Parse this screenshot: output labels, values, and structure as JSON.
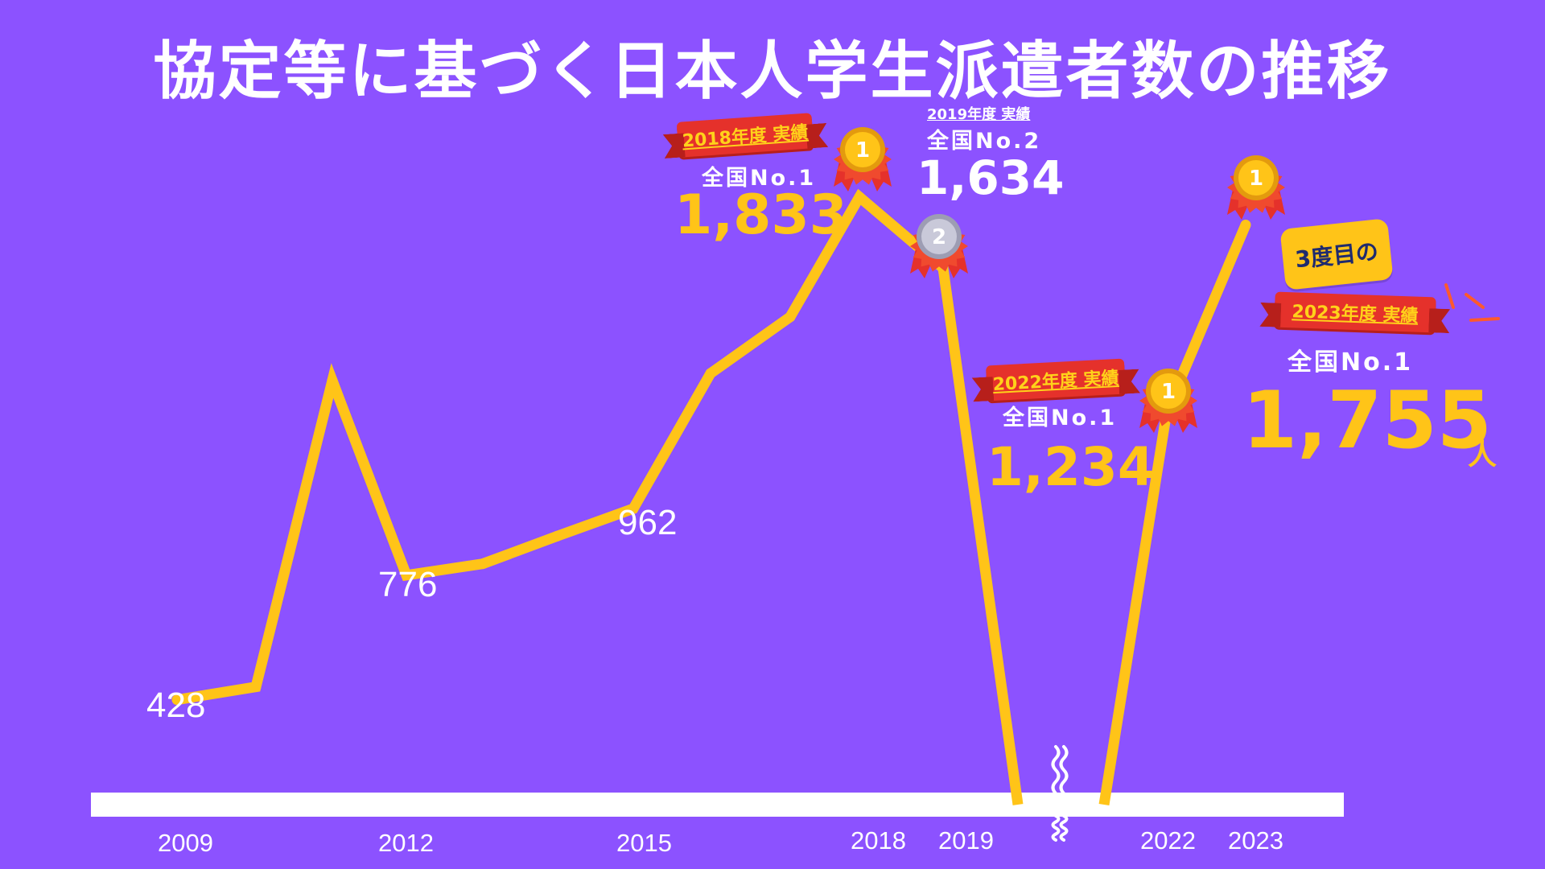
{
  "title": "協定等に基づく日本人学生派遣者数の推移",
  "chart_data": {
    "type": "line",
    "title": "協定等に基づく日本人学生派遣者数の推移",
    "x": [
      "2009",
      "2010",
      "2011",
      "2012",
      "2013",
      "2014",
      "2015",
      "2016",
      "2017",
      "2018",
      "2019",
      "2020",
      "2021",
      "2022",
      "2023"
    ],
    "x_tick_labels": [
      "2009",
      "2012",
      "2015",
      "2018",
      "2019",
      "2022",
      "2023"
    ],
    "series": [
      {
        "values": [
          428,
          464,
          1320,
          776,
          808,
          885,
          962,
          1340,
          1498,
          1833,
          1634,
          null,
          null,
          1234,
          1755
        ]
      }
    ],
    "value_labels": {
      "2009": "428",
      "2012": "776",
      "2015": "962"
    },
    "axis_break": "2020–2021",
    "line_color": "#ffc418",
    "background_color": "#8c52ff"
  },
  "annotations": [
    {
      "year": "2018",
      "ribbon": "2018年度 実績",
      "rank": "全国No.1",
      "value": "1,833",
      "medal": "1"
    },
    {
      "year": "2019",
      "ribbon": "2019年度 実績",
      "rank": "全国No.2",
      "value": "1,634",
      "medal": "2"
    },
    {
      "year": "2022",
      "ribbon": "2022年度 実績",
      "rank": "全国No.1",
      "value": "1,234",
      "medal": "1"
    },
    {
      "year": "2023",
      "ribbon": "2023年度 実績",
      "rank": "全国No.1",
      "value": "1,755",
      "unit": "人",
      "medal": "1",
      "bubble": "3度目の"
    }
  ],
  "colors": {
    "gold": "#ffc418",
    "red_ribbon": "#e5312b",
    "silver": "#c9c9d9",
    "navy_text": "#1f2b6e"
  }
}
